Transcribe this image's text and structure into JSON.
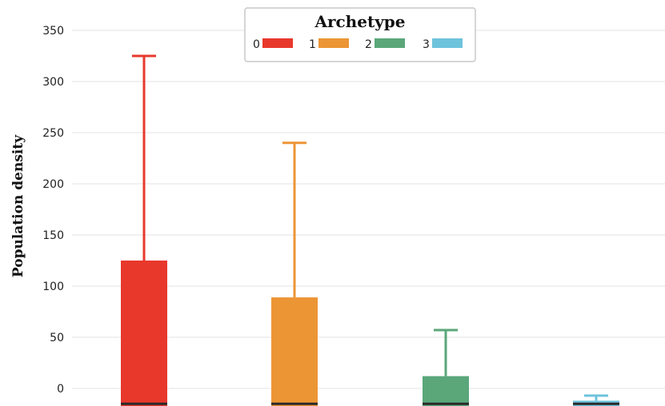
{
  "chart_data": {
    "type": "box",
    "ylabel": "Population density",
    "legend": {
      "title": "Archetype",
      "placement": "top-center"
    },
    "ylim": [
      -15,
      360
    ],
    "yticks": [
      0,
      50,
      100,
      150,
      200,
      250,
      300,
      350
    ],
    "grid": {
      "y": true,
      "x": false
    },
    "series": [
      {
        "name": "0",
        "color": "#e8382c",
        "min": -15,
        "q1": -15,
        "median": -15,
        "q3": 125,
        "max": 325
      },
      {
        "name": "1",
        "color": "#ec9535",
        "min": -15,
        "q1": -15,
        "median": -15,
        "q3": 89,
        "max": 240
      },
      {
        "name": "2",
        "color": "#5ba77a",
        "min": -15,
        "q1": -15,
        "median": -15,
        "q3": 12,
        "max": 57
      },
      {
        "name": "3",
        "color": "#6ec3dc",
        "min": -15,
        "q1": -15,
        "median": -15,
        "q3": -12,
        "max": -7
      }
    ]
  }
}
